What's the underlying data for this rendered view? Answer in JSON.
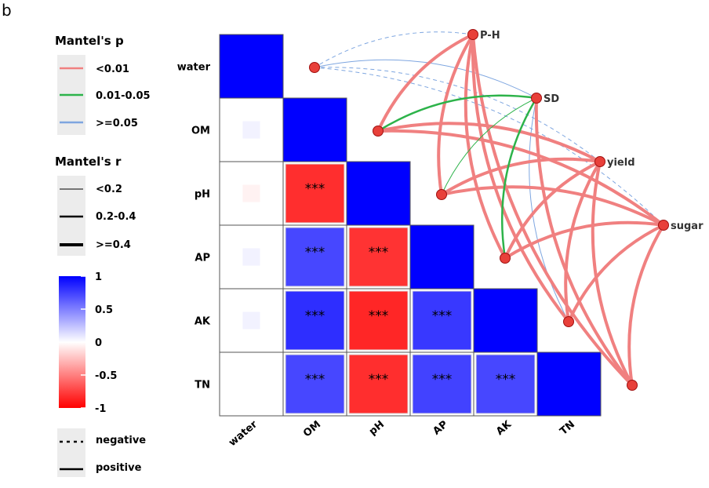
{
  "panel_label": "b",
  "legend": {
    "mantel_p": {
      "title": "Mantel's p",
      "items": [
        {
          "label": "<0.01",
          "color": "#f08080"
        },
        {
          "label": "0.01-0.05",
          "color": "#2db34a"
        },
        {
          "label": ">=0.05",
          "color": "#7ea6e0"
        }
      ]
    },
    "mantel_r": {
      "title": "Mantel's r",
      "items": [
        {
          "label": "<0.2"
        },
        {
          "label": "0.2-0.4"
        },
        {
          "label": ">=0.4"
        }
      ]
    },
    "colorbar": {
      "ticks": [
        "1",
        "0.5",
        "0",
        "-0.5",
        "-1"
      ],
      "tick_values": [
        1,
        0.5,
        0,
        -0.5,
        -1
      ],
      "low_color": "#ff0000",
      "mid_color": "#ffffff",
      "high_color": "#0000ff"
    },
    "line_type": {
      "items": [
        {
          "label": "negative",
          "style": "dashed"
        },
        {
          "label": "positive",
          "style": "solid"
        }
      ]
    }
  },
  "chart_data": {
    "type": "heatmap",
    "variables": [
      "water",
      "OM",
      "pH",
      "AP",
      "AK",
      "TN"
    ],
    "correlations": [
      [
        1.0,
        null,
        null,
        null,
        null,
        null
      ],
      [
        0.05,
        1.0,
        null,
        null,
        null,
        null
      ],
      [
        -0.05,
        -0.82,
        1.0,
        null,
        null,
        null
      ],
      [
        0.05,
        0.72,
        -0.8,
        1.0,
        null,
        null
      ],
      [
        0.05,
        0.82,
        -0.85,
        0.78,
        1.0,
        null
      ],
      [
        0.0,
        0.72,
        -0.82,
        0.74,
        0.72,
        1.0
      ]
    ],
    "significance": [
      [
        "",
        "",
        "",
        "",
        "",
        ""
      ],
      [
        "",
        "",
        "",
        "",
        "",
        ""
      ],
      [
        "",
        "***",
        "",
        "",
        "",
        ""
      ],
      [
        "",
        "***",
        "***",
        "",
        "",
        ""
      ],
      [
        "",
        "***",
        "***",
        "***",
        "",
        ""
      ],
      [
        "",
        "***",
        "***",
        "***",
        "***",
        ""
      ]
    ],
    "color_scale": [
      -1,
      1
    ],
    "mantel_targets": [
      "P-H",
      "SD",
      "yield",
      "sugar"
    ],
    "mantel_links": [
      {
        "from": "P-H",
        "to": "water",
        "p": ">=0.05",
        "r": "<0.2",
        "sign": "negative"
      },
      {
        "from": "P-H",
        "to": "OM",
        "p": "<0.01",
        "r": ">=0.4",
        "sign": "positive"
      },
      {
        "from": "P-H",
        "to": "pH",
        "p": "<0.01",
        "r": ">=0.4",
        "sign": "positive"
      },
      {
        "from": "P-H",
        "to": "AP",
        "p": "<0.01",
        "r": ">=0.4",
        "sign": "positive"
      },
      {
        "from": "P-H",
        "to": "AK",
        "p": "<0.01",
        "r": ">=0.4",
        "sign": "positive"
      },
      {
        "from": "P-H",
        "to": "TN",
        "p": "<0.01",
        "r": ">=0.4",
        "sign": "positive"
      },
      {
        "from": "SD",
        "to": "water",
        "p": ">=0.05",
        "r": "<0.2",
        "sign": "positive"
      },
      {
        "from": "SD",
        "to": "OM",
        "p": "0.01-0.05",
        "r": "0.2-0.4",
        "sign": "positive"
      },
      {
        "from": "SD",
        "to": "pH",
        "p": "0.01-0.05",
        "r": "<0.2",
        "sign": "positive"
      },
      {
        "from": "SD",
        "to": "AP",
        "p": "0.01-0.05",
        "r": "0.2-0.4",
        "sign": "positive"
      },
      {
        "from": "SD",
        "to": "AK",
        "p": ">=0.05",
        "r": "<0.2",
        "sign": "positive"
      },
      {
        "from": "SD",
        "to": "TN",
        "p": "<0.01",
        "r": ">=0.4",
        "sign": "positive"
      },
      {
        "from": "yield",
        "to": "water",
        "p": ">=0.05",
        "r": "<0.2",
        "sign": "negative"
      },
      {
        "from": "yield",
        "to": "OM",
        "p": "<0.01",
        "r": ">=0.4",
        "sign": "positive"
      },
      {
        "from": "yield",
        "to": "pH",
        "p": "<0.01",
        "r": ">=0.4",
        "sign": "positive"
      },
      {
        "from": "yield",
        "to": "AP",
        "p": "<0.01",
        "r": ">=0.4",
        "sign": "positive"
      },
      {
        "from": "yield",
        "to": "AK",
        "p": "<0.01",
        "r": ">=0.4",
        "sign": "positive"
      },
      {
        "from": "yield",
        "to": "TN",
        "p": "<0.01",
        "r": ">=0.4",
        "sign": "positive"
      },
      {
        "from": "sugar",
        "to": "water",
        "p": ">=0.05",
        "r": "<0.2",
        "sign": "negative"
      },
      {
        "from": "sugar",
        "to": "OM",
        "p": "<0.01",
        "r": ">=0.4",
        "sign": "positive"
      },
      {
        "from": "sugar",
        "to": "pH",
        "p": "<0.01",
        "r": ">=0.4",
        "sign": "positive"
      },
      {
        "from": "sugar",
        "to": "AP",
        "p": "<0.01",
        "r": ">=0.4",
        "sign": "positive"
      },
      {
        "from": "sugar",
        "to": "AK",
        "p": "<0.01",
        "r": ">=0.4",
        "sign": "positive"
      },
      {
        "from": "sugar",
        "to": "TN",
        "p": "<0.01",
        "r": ">=0.4",
        "sign": "positive"
      }
    ]
  }
}
